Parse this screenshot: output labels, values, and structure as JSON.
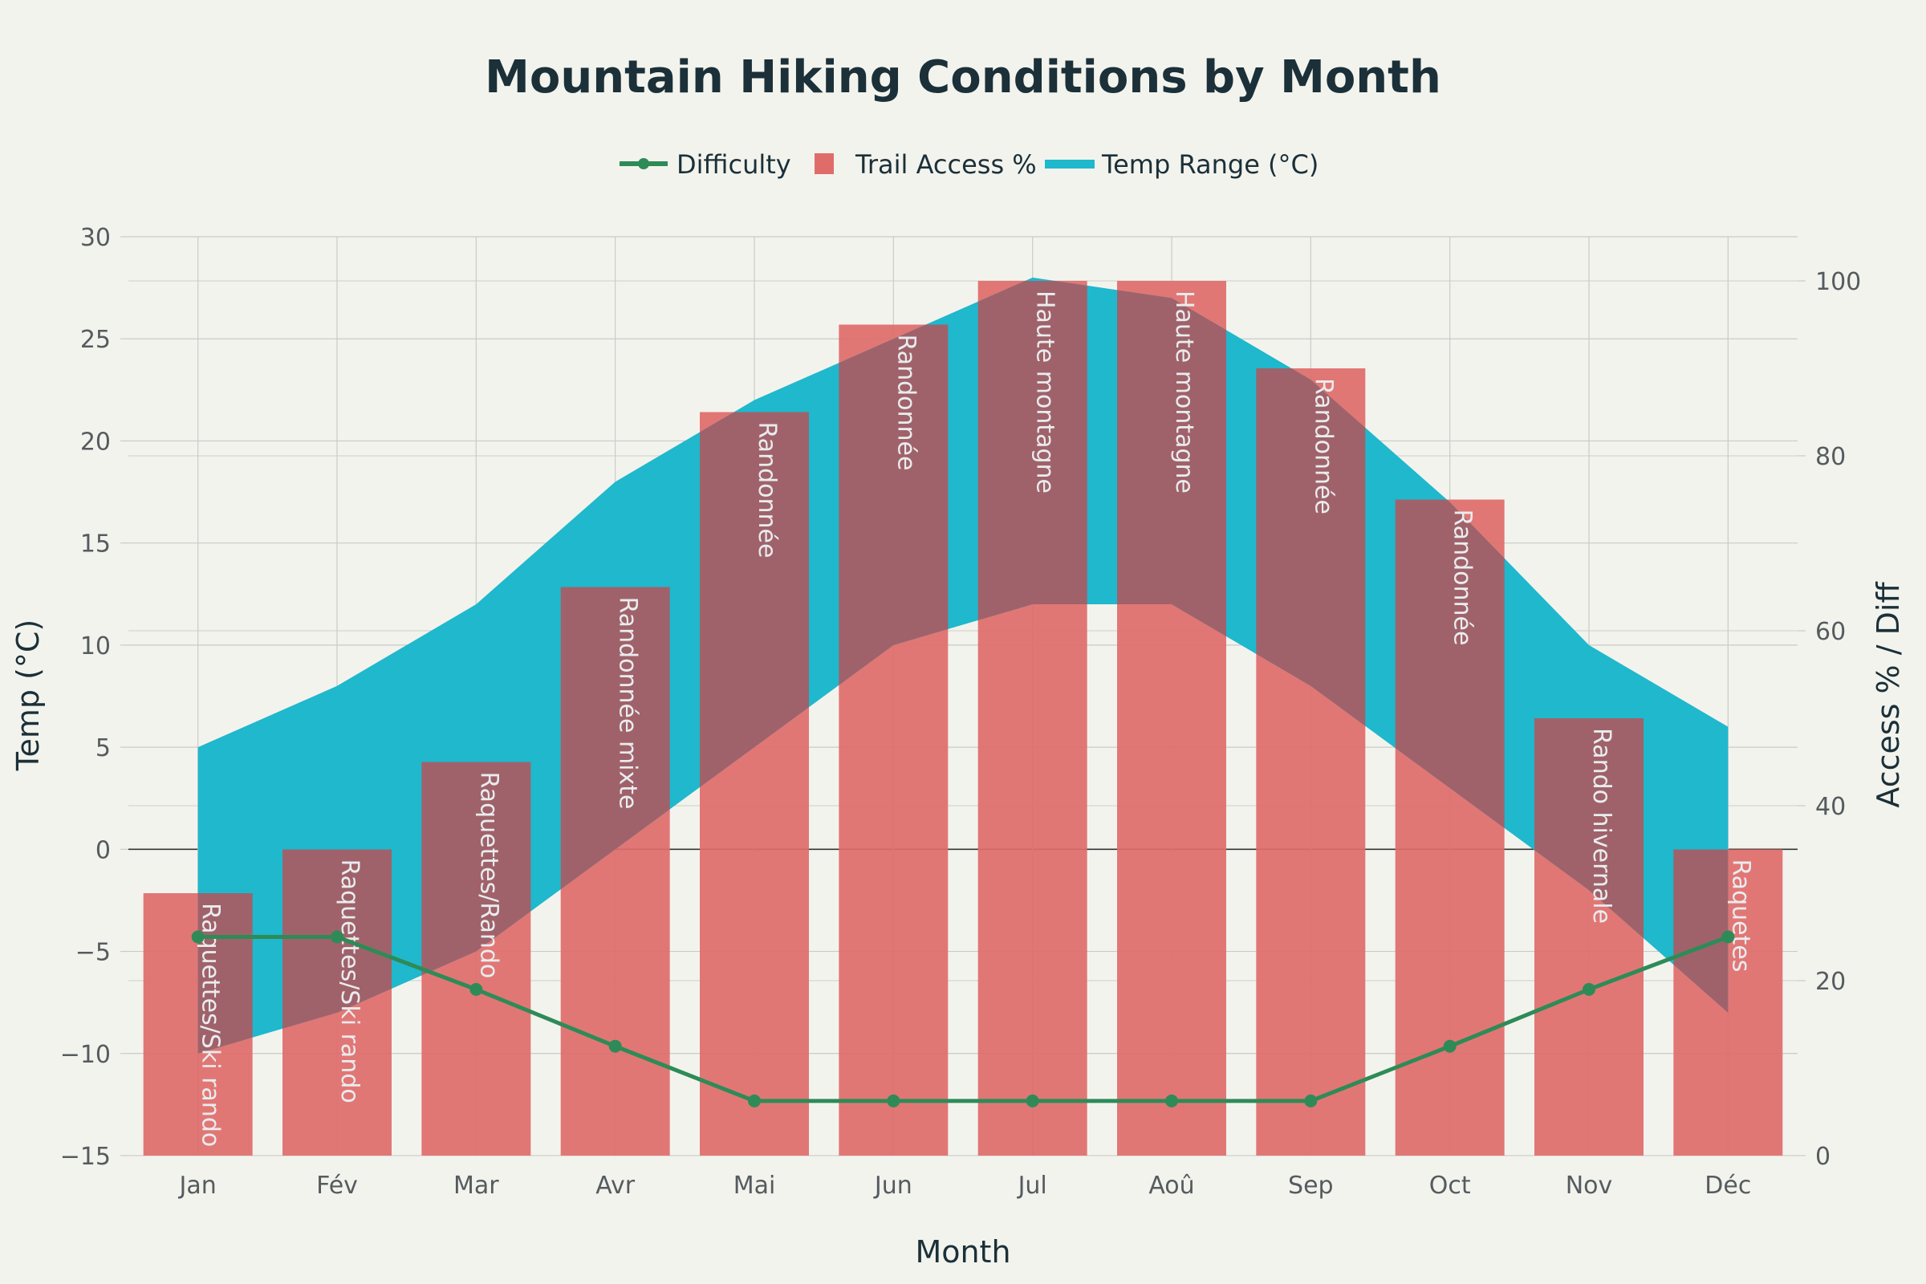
{
  "chart_data": {
    "type": "bar",
    "title": "Mountain Hiking Conditions by Month",
    "xlabel": "Month",
    "ylabel_left": "Temp (°C)",
    "ylabel_right": "Access % / Diff",
    "categories": [
      "Jan",
      "Fév",
      "Mar",
      "Avr",
      "Mai",
      "Jun",
      "Jul",
      "Aoû",
      "Sep",
      "Oct",
      "Nov",
      "Déc"
    ],
    "y_left_range": [
      -15,
      30
    ],
    "y_left_ticks": [
      -15,
      -10,
      -5,
      0,
      5,
      10,
      15,
      20,
      25,
      30
    ],
    "y_right_range": [
      0,
      100
    ],
    "y_right_ticks": [
      0,
      20,
      40,
      60,
      80,
      100
    ],
    "grid": true,
    "legend_position": "top-center",
    "legend": [
      "Difficulty",
      "Trail Access %",
      "Temp Range (°C)"
    ],
    "series": [
      {
        "name": "Trail Access %",
        "kind": "bar",
        "axis": "right",
        "color": "#e06c6a",
        "values": [
          30,
          35,
          45,
          65,
          85,
          95,
          100,
          100,
          90,
          75,
          50,
          35
        ],
        "labels": [
          "Raquettes/Ski rando",
          "Raquettes/Ski rando",
          "Raquettes/Rando",
          "Randonnée mixte",
          "Randonnée",
          "Randonnée",
          "Haute montagne",
          "Haute montagne",
          "Randonnée",
          "Randonnée",
          "Rando hivernale",
          "Raquetes"
        ]
      },
      {
        "name": "Temp Range (°C)",
        "kind": "area-band",
        "axis": "left",
        "color": "#1fb8cd",
        "low": [
          -10,
          -8,
          -5,
          0,
          5,
          10,
          12,
          12,
          8,
          3,
          -2,
          -8
        ],
        "high": [
          5,
          8,
          12,
          18,
          22,
          25,
          28,
          27,
          23,
          17,
          10,
          6
        ]
      },
      {
        "name": "Difficulty",
        "kind": "line",
        "axis": "right",
        "color": "#2e8b57",
        "values": [
          25,
          25,
          19,
          12.5,
          6.25,
          6.25,
          6.25,
          6.25,
          6.25,
          12.5,
          19,
          25
        ]
      }
    ]
  }
}
